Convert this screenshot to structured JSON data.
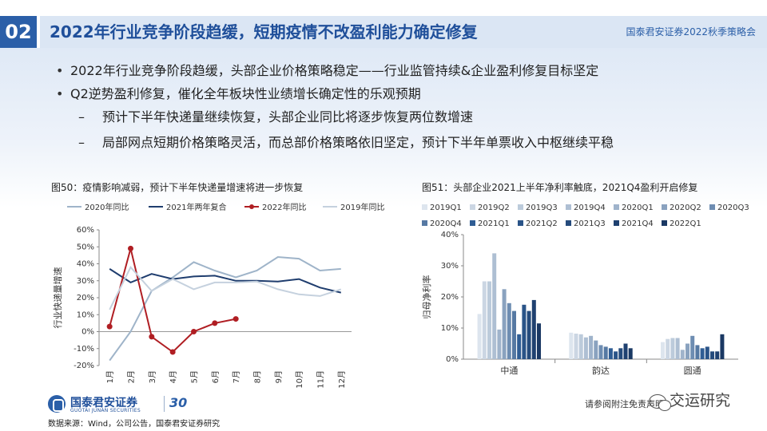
{
  "header": {
    "page_num": "02",
    "title": "2022年行业竞争阶段趋缓，短期疫情不改盈利能力确定修复",
    "right_text": "国泰君安证券2022秋季策略会"
  },
  "bullets": [
    "2022年行业竞争阶段趋缓，头部企业价格策略稳定——行业监管持续&企业盈利修复目标坚定",
    "Q2逆势盈利修复，催化全年板块性业绩增长确定性的乐观预期"
  ],
  "sub_bullets": [
    "预计下半年快递量继续恢复，头部企业同比将逐步恢复两位数增速",
    "局部网点短期价格策略灵活，而总部价格策略依旧坚定，预计下半年单票收入中枢继续平稳"
  ],
  "sub_dash": "–",
  "chart_data": [
    {
      "type": "line",
      "title": "图50：疫情影响减弱，预计下半年快递量增速将进一步恢复",
      "ylabel": "行业快递量增速",
      "categories": [
        "1月",
        "2月",
        "3月",
        "4月",
        "5月",
        "6月",
        "7月",
        "8月",
        "9月",
        "10月",
        "11月",
        "12月"
      ],
      "ylim": [
        -20,
        60
      ],
      "yticks": [
        -20,
        -10,
        0,
        10,
        20,
        30,
        40,
        50,
        60
      ],
      "ytick_labels": [
        "-20%",
        "-10%",
        "0%",
        "10%",
        "20%",
        "30%",
        "40%",
        "50%",
        "60%"
      ],
      "legend_position": "top",
      "grid": false,
      "series": [
        {
          "name": "2020年同比",
          "color": "#9fb4c9",
          "values": [
            -17,
            0,
            24,
            32,
            41,
            36,
            32,
            36,
            44,
            43,
            36,
            37
          ]
        },
        {
          "name": "2021年两年复合",
          "color": "#1f3d6e",
          "values": [
            37,
            29,
            34,
            31,
            32.5,
            33,
            30,
            30,
            29.5,
            31,
            26,
            23
          ]
        },
        {
          "name": "2022年同比",
          "color": "#b01e23",
          "markers": true,
          "values": [
            3,
            49,
            -3,
            -12,
            0,
            5,
            7.5,
            null,
            null,
            null,
            null,
            null
          ]
        },
        {
          "name": "2019年同比",
          "color": "#c5d1de",
          "values": [
            13,
            38,
            24,
            31,
            25,
            29,
            29,
            29.5,
            25,
            22,
            21,
            25
          ]
        }
      ]
    },
    {
      "type": "bar",
      "title": "图51：头部企业2021上半年净利率触底，2021Q4盈利开启修复",
      "ylabel": "归母净利率",
      "categories": [
        "中通",
        "韵达",
        "圆通"
      ],
      "ylim": [
        0,
        40
      ],
      "yticks": [
        0,
        10,
        20,
        30,
        40
      ],
      "ytick_labels": [
        "0%",
        "10%",
        "20%",
        "30%",
        "40%"
      ],
      "legend_position": "top",
      "grid": false,
      "series": [
        {
          "name": "2019Q1",
          "color": "#dde5ee",
          "values": [
            14.5,
            8.5,
            5.5
          ]
        },
        {
          "name": "2019Q2",
          "color": "#cbd6e3",
          "values": [
            25,
            8.2,
            6.5
          ]
        },
        {
          "name": "2019Q3",
          "color": "#bccbdb",
          "values": [
            25,
            8.0,
            6.8
          ]
        },
        {
          "name": "2019Q4",
          "color": "#aebfd3",
          "values": [
            34,
            7.0,
            6.8
          ]
        },
        {
          "name": "2020Q1",
          "color": "#9fb3cb",
          "values": [
            9.5,
            7.5,
            3.0
          ]
        },
        {
          "name": "2020Q2",
          "color": "#8aa2bf",
          "values": [
            22.5,
            6.0,
            5.0
          ]
        },
        {
          "name": "2020Q3",
          "color": "#6e8db2",
          "values": [
            18,
            4.5,
            7.5
          ]
        },
        {
          "name": "2020Q4",
          "color": "#5679a3",
          "values": [
            15.5,
            4.0,
            4.5
          ]
        },
        {
          "name": "2021Q1",
          "color": "#2f5d94",
          "values": [
            8.0,
            3.5,
            3.5
          ]
        },
        {
          "name": "2021Q2",
          "color": "#2a5488",
          "values": [
            17.5,
            2.5,
            4.0
          ]
        },
        {
          "name": "2021Q3",
          "color": "#254b7c",
          "values": [
            15.5,
            3.5,
            2.5
          ]
        },
        {
          "name": "2021Q4",
          "color": "#1f4170",
          "values": [
            19,
            5.0,
            2.5
          ]
        },
        {
          "name": "2022Q1",
          "color": "#1a3863",
          "values": [
            11.5,
            3.5,
            8.0
          ]
        }
      ]
    }
  ],
  "footer": {
    "logo_cn": "国泰君安证券",
    "logo_en": "GUOTAI JUNAN SECURITIES",
    "logo_30": "30",
    "source": "数据来源：Wind，公司公告，国泰君安证券研究",
    "disclaimer": "请参阅附注免责声明",
    "watermark": "交运研究"
  }
}
